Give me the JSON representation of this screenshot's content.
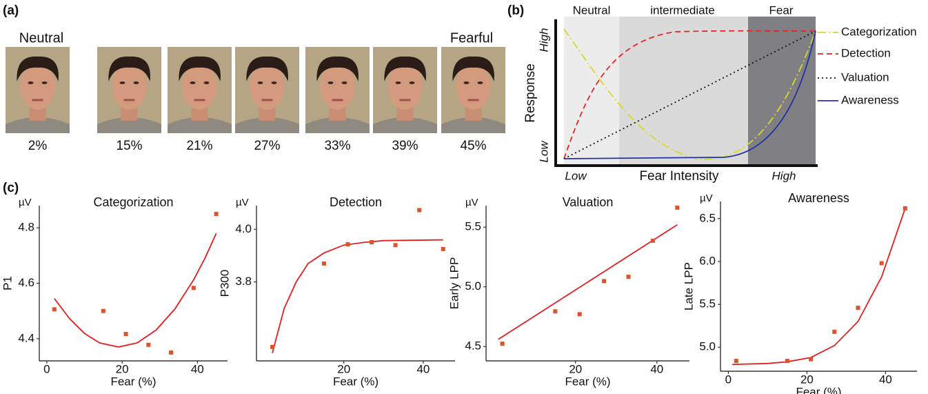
{
  "panel_a": {
    "label": "(a)",
    "neutral_label": "Neutral",
    "fearful_label": "Fearful",
    "faces": [
      "2%",
      "15%",
      "21%",
      "27%",
      "33%",
      "39%",
      "45%"
    ]
  },
  "panel_b": {
    "label": "(b)",
    "regions": [
      "Neutral",
      "intermediate",
      "Fear"
    ],
    "y_axis_label": "Response",
    "y_high": "High",
    "y_low": "Low",
    "x_axis_label": "Fear Intensity",
    "x_low": "Low",
    "x_high": "High",
    "legend": [
      {
        "name": "Categorization",
        "color": "#d8d82a"
      },
      {
        "name": "Detection",
        "color": "#e8261f"
      },
      {
        "name": "Valuation",
        "color": "#111111"
      },
      {
        "name": "Awareness",
        "color": "#2233a0"
      }
    ]
  },
  "panel_c_label": "(c)",
  "chart_data": [
    {
      "type": "scatter",
      "title": "Categorization",
      "y_label": "P1",
      "y_unit": "µV",
      "x_label": "Fear (%)",
      "x": [
        2,
        15,
        21,
        27,
        33,
        39,
        45
      ],
      "values": [
        4.506,
        4.5,
        4.417,
        4.378,
        4.35,
        4.583,
        4.85
      ],
      "color": "#e0522a",
      "fit": {
        "x": [
          2,
          6,
          10,
          14,
          19,
          24,
          29,
          34,
          39,
          42,
          45
        ],
        "values": [
          4.545,
          4.473,
          4.419,
          4.385,
          4.37,
          4.385,
          4.431,
          4.507,
          4.613,
          4.69,
          4.78
        ],
        "color": "#e41e1e"
      },
      "xlim": [
        -2,
        48
      ],
      "ylim": [
        4.32,
        4.88
      ],
      "xticks": [
        0,
        20,
        40
      ],
      "yticks": [
        4.4,
        4.6,
        4.8
      ]
    },
    {
      "type": "scatter",
      "title": "Detection",
      "y_label": "P300",
      "y_unit": "µV",
      "x_label": "Fear (%)",
      "x": [
        2,
        15,
        21,
        27,
        33,
        39,
        45
      ],
      "values": [
        3.553,
        3.87,
        3.943,
        3.951,
        3.94,
        4.073,
        3.925
      ],
      "color": "#e0522a",
      "fit": {
        "x": [
          2,
          5,
          8,
          11,
          15,
          20,
          25,
          30,
          45
        ],
        "values": [
          3.53,
          3.7,
          3.8,
          3.87,
          3.91,
          3.94,
          3.95,
          3.957,
          3.96
        ],
        "color": "#e41e1e"
      },
      "xlim": [
        -2,
        48
      ],
      "ylim": [
        3.5,
        4.09
      ],
      "xticks": [
        20,
        40
      ],
      "yticks": [
        3.8,
        {
          "value": 4,
          "label": "4.0"
        }
      ]
    },
    {
      "type": "scatter",
      "title": "Valuation",
      "y_label": "Early LPP",
      "y_unit": "µV",
      "x_label": "Fear (%)",
      "x": [
        2,
        15,
        21,
        27,
        33,
        39,
        45
      ],
      "values": [
        4.524,
        4.795,
        4.771,
        5.048,
        5.084,
        5.386,
        5.663
      ],
      "color": "#e0522a",
      "fit": {
        "x": [
          1,
          45
        ],
        "values": [
          4.56,
          5.52
        ],
        "color": "#e41e1e"
      },
      "xlim": [
        -2,
        48
      ],
      "ylim": [
        4.38,
        5.68
      ],
      "xticks": [
        20,
        40
      ],
      "yticks": [
        4.5,
        {
          "value": 5,
          "label": "5.0"
        },
        5.5
      ]
    },
    {
      "type": "scatter",
      "title": "Awareness",
      "y_label": "Late LPP",
      "y_unit": "µV",
      "x_label": "Fear (%)",
      "x": [
        2,
        15,
        21,
        27,
        33,
        39,
        45
      ],
      "values": [
        4.84,
        4.84,
        4.86,
        5.18,
        5.46,
        5.98,
        6.62
      ],
      "color": "#e0522a",
      "fit": {
        "x": [
          1,
          10,
          15,
          21,
          27,
          33,
          39,
          45
        ],
        "values": [
          4.8,
          4.81,
          4.83,
          4.88,
          5.02,
          5.3,
          5.82,
          6.62
        ],
        "color": "#e41e1e"
      },
      "xlim": [
        -2,
        48
      ],
      "ylim": [
        4.72,
        6.7
      ],
      "xticks": [
        0,
        20,
        40
      ],
      "yticks": [
        {
          "value": 5,
          "label": "5.0"
        },
        5.5,
        {
          "value": 6,
          "label": "6.0"
        },
        6.5
      ]
    }
  ]
}
